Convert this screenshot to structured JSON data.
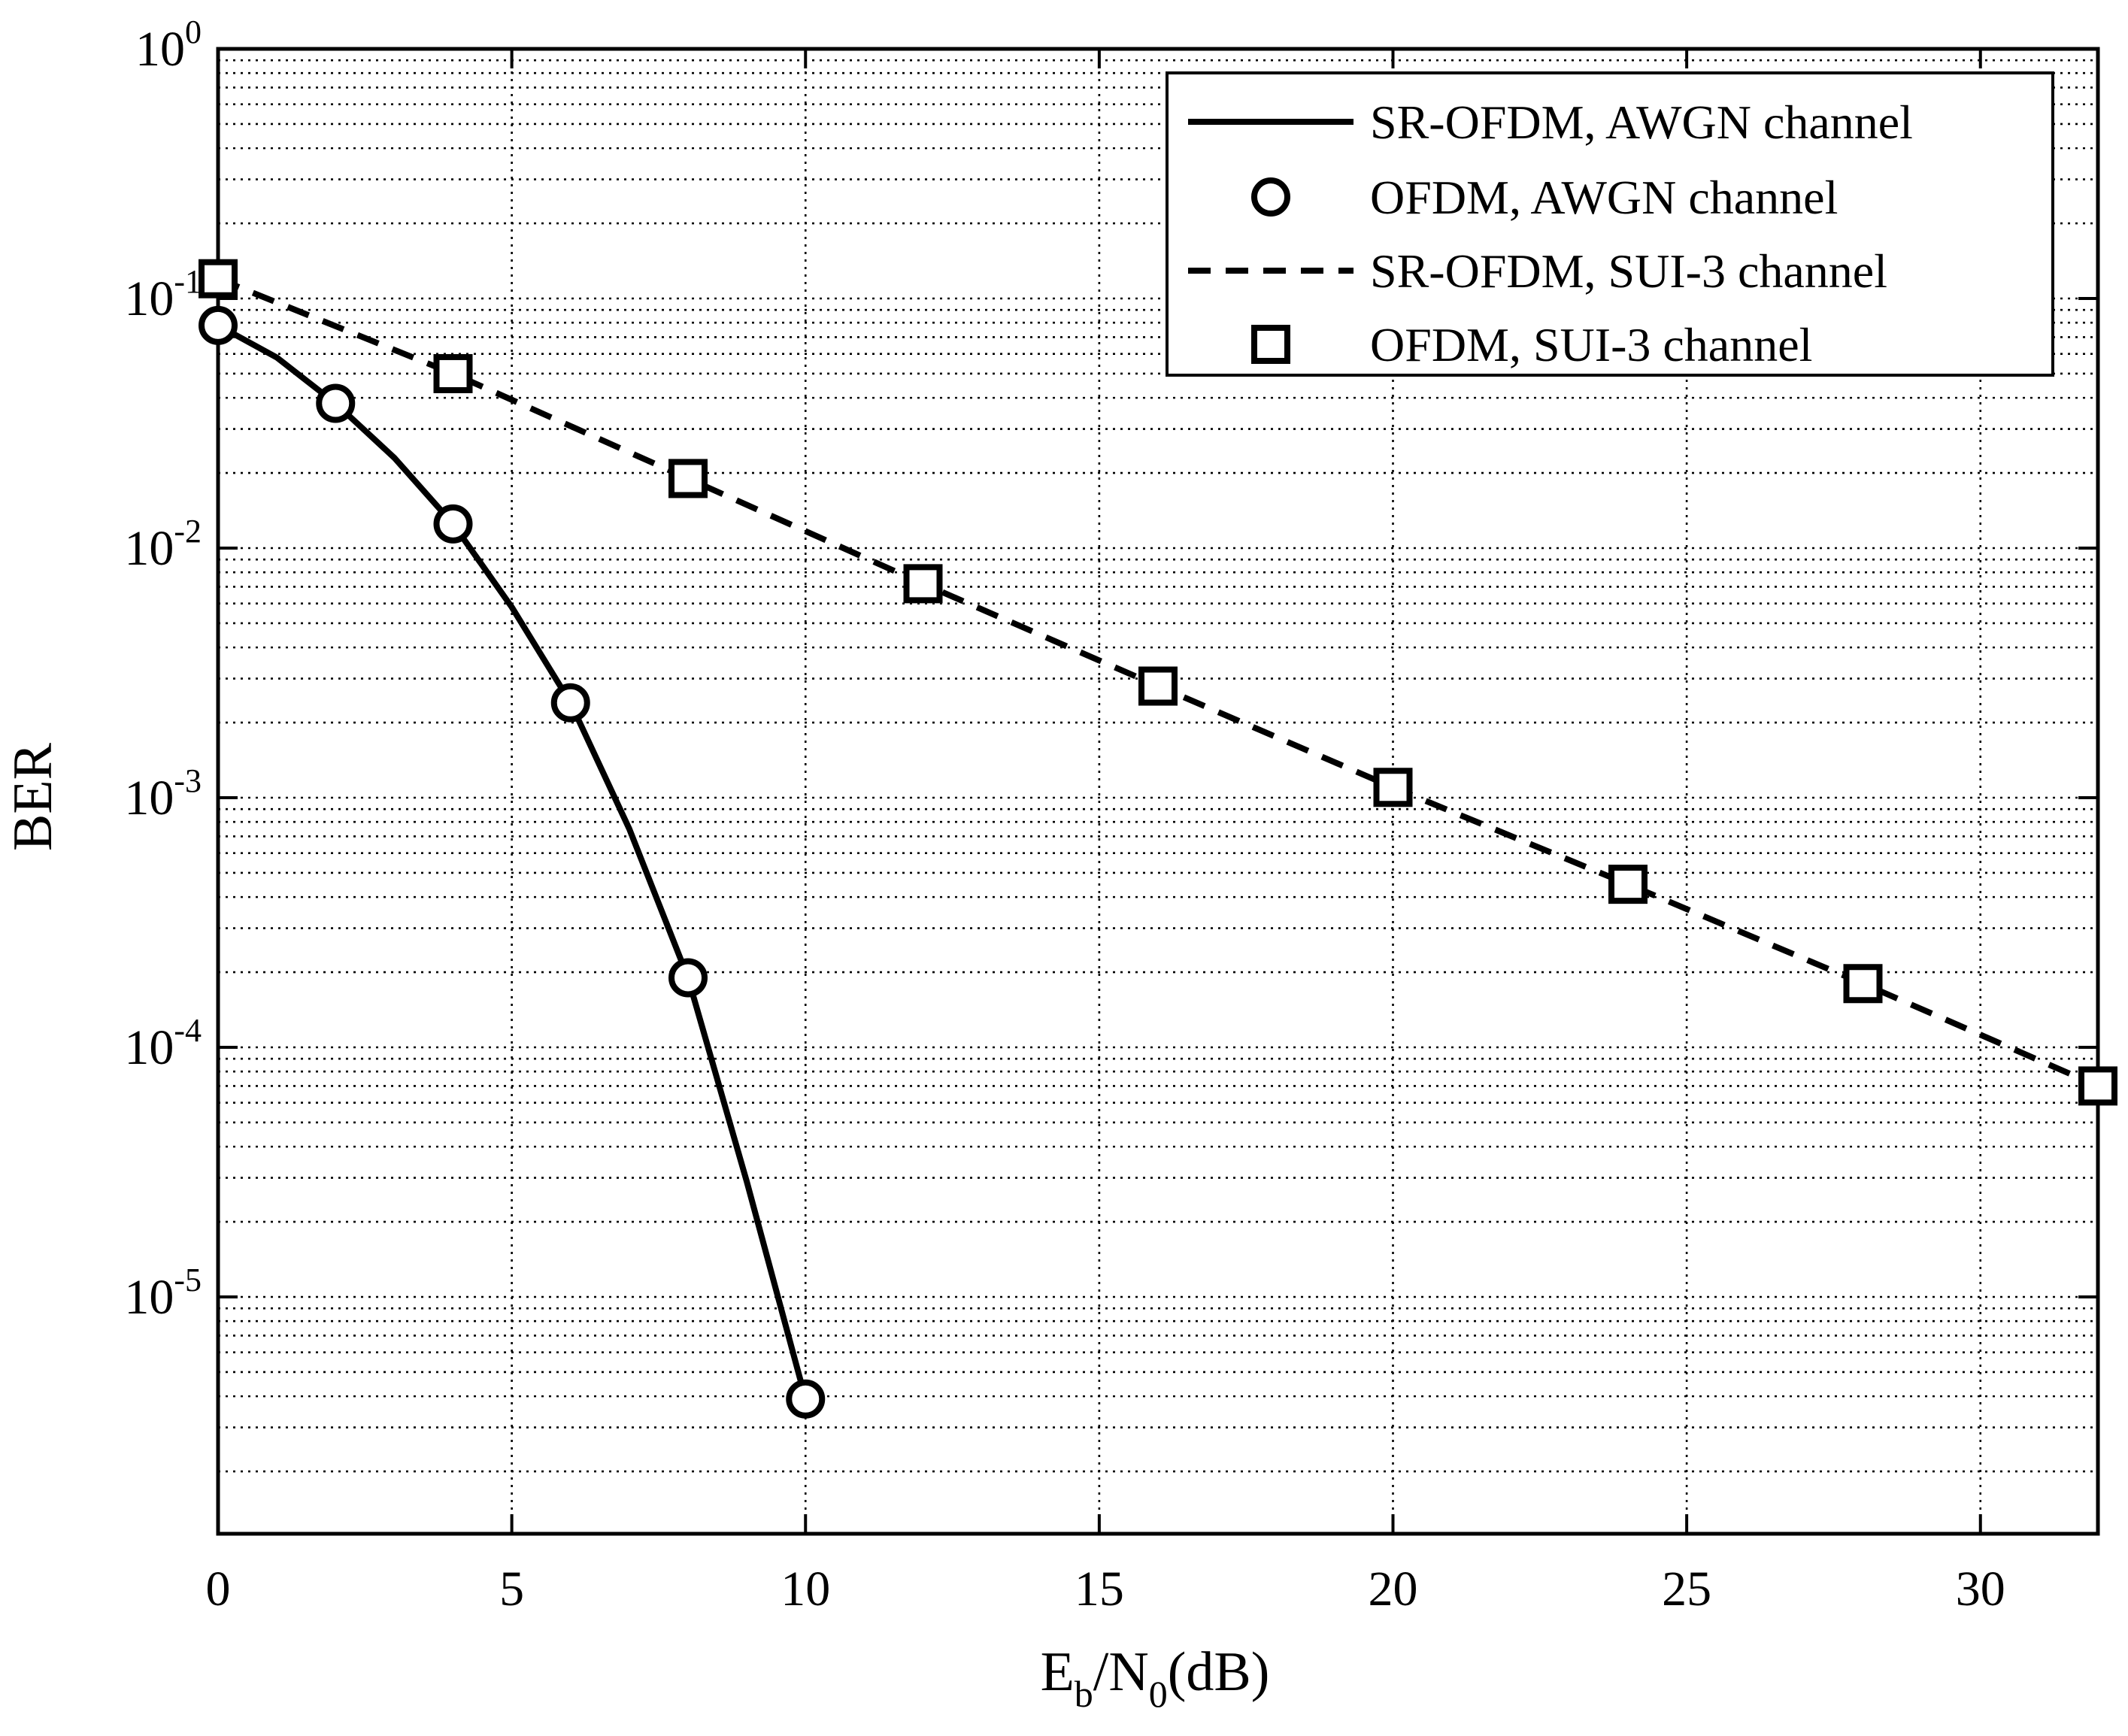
{
  "chart_data": {
    "type": "line",
    "title": "",
    "xlabel": {
      "main": "E",
      "sub_b": "b",
      "mid": "/N",
      "sub_0": "0",
      "tail": "(dB)"
    },
    "ylabel": "BER",
    "xlim": [
      0,
      32
    ],
    "ylim": [
      1e-06,
      1
    ],
    "y_scale": "log",
    "grid": true,
    "x_ticks": [
      0,
      5,
      10,
      15,
      20,
      25,
      30
    ],
    "x_tick_labels": [
      "0",
      "5",
      "10",
      "15",
      "20",
      "25",
      "30"
    ],
    "y_ticks": [
      1,
      0.1,
      0.01,
      0.001,
      0.0001,
      1e-05
    ],
    "y_tick_labels": [
      {
        "base": "10",
        "exp": "0"
      },
      {
        "base": "10",
        "exp": "-1"
      },
      {
        "base": "10",
        "exp": "-2"
      },
      {
        "base": "10",
        "exp": "-3"
      },
      {
        "base": "10",
        "exp": "-4"
      },
      {
        "base": "10",
        "exp": "-5"
      }
    ],
    "legend_position": "top-right",
    "series": [
      {
        "name": "SR-OFDM, AWGN channel",
        "style": "solid-line",
        "x": [
          0,
          1,
          2,
          3,
          4,
          5,
          6,
          7,
          8,
          9,
          10
        ],
        "y": [
          0.078,
          0.058,
          0.038,
          0.023,
          0.0125,
          0.0058,
          0.0024,
          0.00075,
          0.00019,
          2.9e-05,
          3.9e-06
        ]
      },
      {
        "name": "OFDM,  AWGN channel",
        "style": "circle-markers",
        "x": [
          0,
          2,
          4,
          6,
          8,
          10
        ],
        "y": [
          0.078,
          0.038,
          0.0125,
          0.0024,
          0.00019,
          3.9e-06
        ]
      },
      {
        "name": "SR-OFDM, SUI-3 channel",
        "style": "dashed-line",
        "x": [
          0,
          4,
          8,
          12,
          16,
          20,
          24,
          28,
          32
        ],
        "y": [
          0.12,
          0.05,
          0.019,
          0.0072,
          0.0028,
          0.0011,
          0.00045,
          0.00018,
          7e-05
        ]
      },
      {
        "name": "OFDM, SUI-3 channel",
        "style": "square-markers",
        "x": [
          0,
          4,
          8,
          12,
          16,
          20,
          24,
          28,
          32
        ],
        "y": [
          0.12,
          0.05,
          0.019,
          0.0072,
          0.0028,
          0.0011,
          0.00045,
          0.00018,
          7e-05
        ]
      }
    ]
  }
}
